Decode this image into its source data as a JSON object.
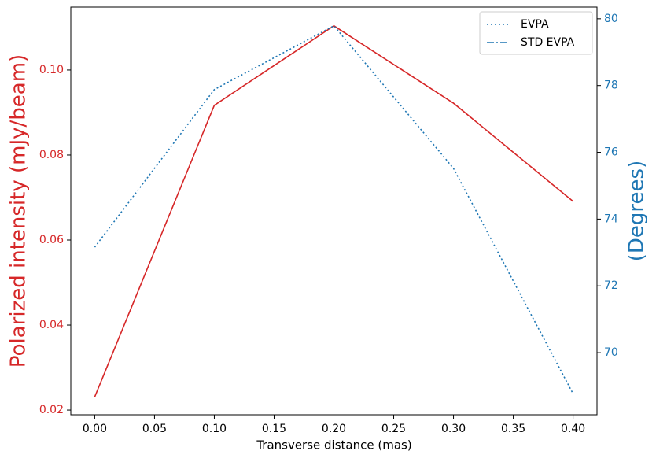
{
  "chart_data": {
    "type": "line",
    "xlabel": "Transverse distance (mas)",
    "ylabel": "Polarized intensity (mJy/beam)",
    "y2label": "(Degrees)",
    "x": [
      0.0,
      0.1,
      0.2,
      0.3,
      0.4
    ],
    "xlim": [
      -0.02,
      0.42
    ],
    "xticks": [
      {
        "value": 0,
        "label": "0.00"
      },
      0.05,
      {
        "value": 0.1,
        "label": "0.10"
      },
      0.15,
      {
        "value": 0.2,
        "label": "0.20"
      },
      0.25,
      {
        "value": 0.3,
        "label": "0.30"
      },
      0.35,
      {
        "value": 0.4,
        "label": "0.40"
      }
    ],
    "ylim": [
      0.0189,
      0.1148
    ],
    "yticks": [
      0.02,
      0.04,
      0.06,
      0.08,
      {
        "value": 0.1,
        "label": "0.10"
      }
    ],
    "y2lim": [
      68.14,
      80.35
    ],
    "y2ticks": [
      70,
      72,
      74,
      76,
      78,
      80
    ],
    "ycolor": "#d62728",
    "y2color": "#1f77b4",
    "legend": "upper right",
    "series": [
      {
        "color": "#d62728",
        "style": "solid",
        "values": [
          0.0231,
          0.0917,
          0.1104,
          0.0922,
          0.0691
        ]
      },
      {
        "name": "EVPA",
        "color": "#1f77b4",
        "style": "dotted",
        "axis": "y2",
        "values": [
          73.16,
          77.88,
          79.79,
          75.52,
          68.77
        ]
      },
      {
        "name": "STD EVPA",
        "color": "#1f77b4",
        "style": "dashdot",
        "axis": "y2",
        "values": [
          null,
          null,
          null,
          null,
          null
        ]
      }
    ]
  }
}
